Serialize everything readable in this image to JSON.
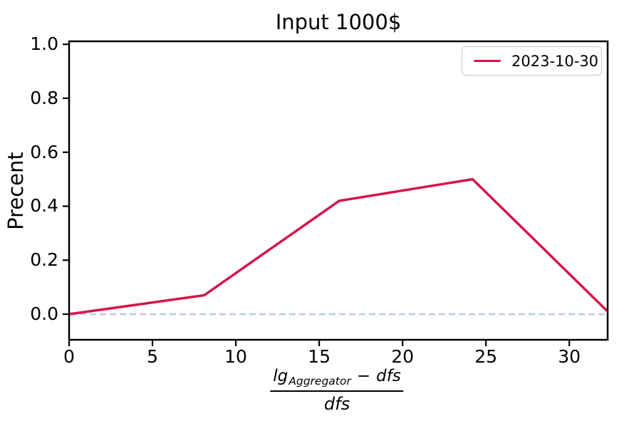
{
  "title": "Input 1000$",
  "ylabel": "Precent",
  "xlabel": {
    "num_base": "lg",
    "num_sub": "Aggregator",
    "num_minus": "−",
    "num_term": "dfs",
    "den": "dfs"
  },
  "legend": {
    "label": "2023-10-30",
    "position": "upper right"
  },
  "colors": {
    "line": "#d6144a",
    "zero_line": "#c0cce7",
    "spine": "#000000",
    "legend_border": "#c9c9c9",
    "background": "#ffffff"
  },
  "chart_data": {
    "type": "line",
    "title": "Input 1000$",
    "xlabel": "(lg_Aggregator - dfs) / dfs",
    "ylabel": "Precent",
    "x": [
      0,
      8.1,
      16.2,
      24.2,
      32.3
    ],
    "series": [
      {
        "name": "2023-10-30",
        "color": "#d6144a",
        "values": [
          0.0,
          0.07,
          0.42,
          0.5,
          0.01
        ]
      }
    ],
    "xlim": [
      0,
      32.3
    ],
    "ylim": [
      -0.095,
      1.011
    ],
    "xticks": [
      0,
      5,
      10,
      15,
      20,
      25,
      30
    ],
    "yticks": [
      0.0,
      0.2,
      0.4,
      0.6,
      0.8,
      1.0
    ],
    "ytick_decimals": 1,
    "zero_line": {
      "y": 0.0,
      "style": "dashed",
      "color": "#c0cce7"
    },
    "grid": false,
    "legend_position": "upper right"
  }
}
